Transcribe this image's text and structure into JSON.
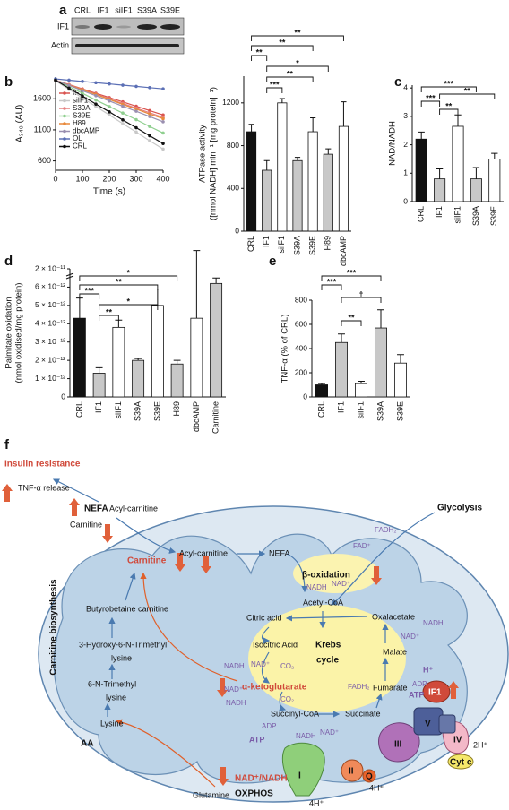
{
  "panel_labels": [
    "a",
    "b",
    "c",
    "d",
    "e",
    "f"
  ],
  "blot": {
    "lanes": [
      "CRL",
      "IF1",
      "siIF1",
      "S39A",
      "S39E"
    ],
    "rows": [
      "IF1",
      "Actin"
    ]
  },
  "chart_data": [
    {
      "type": "line",
      "ylabel": "A₃₄₀ (AU)",
      "xlabel": "Time (s)",
      "x": [
        0,
        50,
        100,
        150,
        200,
        250,
        300,
        350,
        400
      ],
      "xlim": [
        0,
        400
      ],
      "xticks": [
        0,
        100,
        200,
        300,
        400
      ],
      "ylim": [
        450,
        1950
      ],
      "yticks": [
        600,
        1100,
        1600
      ],
      "series": [
        {
          "name": "IF1",
          "color": "#d9534f",
          "values": [
            1900,
            1830,
            1760,
            1690,
            1620,
            1550,
            1480,
            1410,
            1340
          ]
        },
        {
          "name": "siIF1",
          "color": "#c8c8c8",
          "values": [
            1890,
            1750,
            1615,
            1475,
            1340,
            1200,
            1065,
            925,
            790
          ]
        },
        {
          "name": "S39A",
          "color": "#e58080",
          "values": [
            1900,
            1825,
            1750,
            1675,
            1600,
            1525,
            1450,
            1375,
            1300
          ]
        },
        {
          "name": "S39E",
          "color": "#8fcf8f",
          "values": [
            1900,
            1795,
            1690,
            1580,
            1475,
            1370,
            1265,
            1155,
            1050
          ]
        },
        {
          "name": "H89",
          "color": "#e8893a",
          "values": [
            1900,
            1820,
            1745,
            1670,
            1590,
            1510,
            1435,
            1355,
            1280
          ]
        },
        {
          "name": "dbcAMP",
          "color": "#9a8fb0",
          "values": [
            1900,
            1815,
            1730,
            1650,
            1565,
            1480,
            1400,
            1315,
            1230
          ]
        },
        {
          "name": "OL",
          "color": "#5b6fb5",
          "values": [
            1920,
            1900,
            1880,
            1860,
            1840,
            1820,
            1800,
            1780,
            1760
          ]
        },
        {
          "name": "CRL",
          "color": "#111111",
          "values": [
            1900,
            1770,
            1645,
            1515,
            1390,
            1260,
            1135,
            1005,
            880
          ]
        }
      ]
    },
    {
      "type": "bar",
      "ylabel": [
        "ATPase activity",
        "([nmol NADH] min⁻¹ [mg protein]⁻¹)"
      ],
      "categories": [
        "CRL",
        "IF1",
        "siIF1",
        "S39A",
        "S39E",
        "H89",
        "dbcAMP"
      ],
      "values": [
        930,
        570,
        1200,
        660,
        930,
        720,
        980
      ],
      "errors": [
        70,
        90,
        40,
        30,
        130,
        50,
        230
      ],
      "colors": [
        "#111111",
        "#c8c8c8",
        "#ffffff",
        "#c8c8c8",
        "#ffffff",
        "#c8c8c8",
        "#ffffff"
      ],
      "ylim": [
        0,
        1450
      ],
      "yticks": [
        0,
        400,
        800,
        1200
      ],
      "significance": [
        "**",
        "**",
        "**",
        "*",
        "**",
        "***"
      ]
    },
    {
      "type": "bar",
      "ylabel": "NAD/NADH",
      "categories": [
        "CRL",
        "IF1",
        "siIF1",
        "S39A",
        "S39E"
      ],
      "values": [
        2.2,
        0.8,
        2.65,
        0.8,
        1.5
      ],
      "errors": [
        0.25,
        0.35,
        0.4,
        0.4,
        0.2
      ],
      "colors": [
        "#111111",
        "#c8c8c8",
        "#ffffff",
        "#c8c8c8",
        "#ffffff"
      ],
      "ylim": [
        0,
        4.1
      ],
      "yticks": [
        0,
        1,
        2,
        3,
        4
      ],
      "significance": [
        "***",
        "**",
        "***",
        "**"
      ]
    },
    {
      "type": "bar",
      "ylabel": [
        "Palmitate oxidation",
        "(nmol oxidised/mg protein)"
      ],
      "categories": [
        "CRL",
        "IF1",
        "siIF1",
        "S39A",
        "S39E",
        "H89",
        "dbcAMP",
        "Carnitine"
      ],
      "values": [
        4.3e-12,
        1.3e-12,
        3.8e-12,
        2e-12,
        5e-12,
        1.8e-12,
        4.3e-12,
        6.2e-12
      ],
      "errors": [
        1.1e-12,
        3e-13,
        4e-13,
        1e-13,
        9e-13,
        2e-13,
        3.7e-12,
        3e-13
      ],
      "colors": [
        "#111111",
        "#c8c8c8",
        "#ffffff",
        "#c8c8c8",
        "#ffffff",
        "#c8c8c8",
        "#ffffff",
        "#c8c8c8"
      ],
      "ylim": [
        0,
        7e-12
      ],
      "yticks": [
        0,
        {
          "value": 1e-12,
          "label": "1 × 10⁻¹²"
        },
        {
          "value": 2e-12,
          "label": "2 × 10⁻¹²"
        },
        {
          "value": 3e-12,
          "label": "3 × 10⁻¹²"
        },
        {
          "value": 4e-12,
          "label": "4 × 10⁻¹²"
        },
        {
          "value": 5e-12,
          "label": "5 × 10⁻¹²"
        },
        {
          "value": 6e-12,
          "label": "6 × 10⁻¹²"
        }
      ],
      "ybreak_tick": {
        "value": 2e-11,
        "label": "2 × 10⁻¹¹"
      },
      "significance": [
        "*",
        "**",
        "***",
        "*",
        "**"
      ]
    },
    {
      "type": "bar",
      "ylabel": "TNF-α (% of CRL)",
      "categories": [
        "CRL",
        "IF1",
        "siIF1",
        "S39A",
        "S39E"
      ],
      "values": [
        100,
        450,
        110,
        570,
        280
      ],
      "errors": [
        10,
        70,
        20,
        150,
        70
      ],
      "colors": [
        "#111111",
        "#c8c8c8",
        "#ffffff",
        "#c8c8c8",
        "#ffffff"
      ],
      "ylim": [
        0,
        800
      ],
      "yticks": [
        0,
        200,
        400,
        600,
        800
      ],
      "significance": [
        "***",
        "***",
        "†",
        "**"
      ]
    }
  ],
  "diagram": {
    "labels": [
      "Insulin resistance",
      "TNF-α release",
      "NEFA",
      "Acyl-carnitine",
      "Carnitine",
      "Glycolysis",
      "Acyl-carnitine",
      "NEFA",
      "FADH₂",
      "FAD⁺",
      "β-oxidation",
      "NADH",
      "NAD⁺",
      "Acetyl-CoA",
      "Carnitine",
      "Butyrobetaine carnitine",
      "Carnitine biosynthesis",
      "3-Hydroxy-6-N-Trimethyl",
      "lysine",
      "6-N-Trimethyl",
      "lysine",
      "Lysine",
      "AA",
      "Glutamine",
      "Citric acid",
      "Oxalacetate",
      "NADH",
      "NAD⁺",
      "Krebs",
      "cycle",
      "Isocitric Acid",
      "Malate",
      "NADH",
      "NAD⁺",
      "CO₂",
      "α-ketoglutarate",
      "FADH₂",
      "Fumarate",
      "NAD⁺",
      "NADH",
      "CO₂",
      "Succinyl-CoA",
      "Succinate",
      "ADP",
      "ATP",
      "NADH",
      "NAD⁺",
      "H⁺",
      "ADP",
      "ATP",
      "IF1",
      "V",
      "III",
      "IV",
      "2H⁺",
      "Cyt c",
      "II",
      "Q",
      "4H⁺",
      "I",
      "NAD⁺/NADH",
      "OXPHOS",
      "4H⁺"
    ]
  }
}
